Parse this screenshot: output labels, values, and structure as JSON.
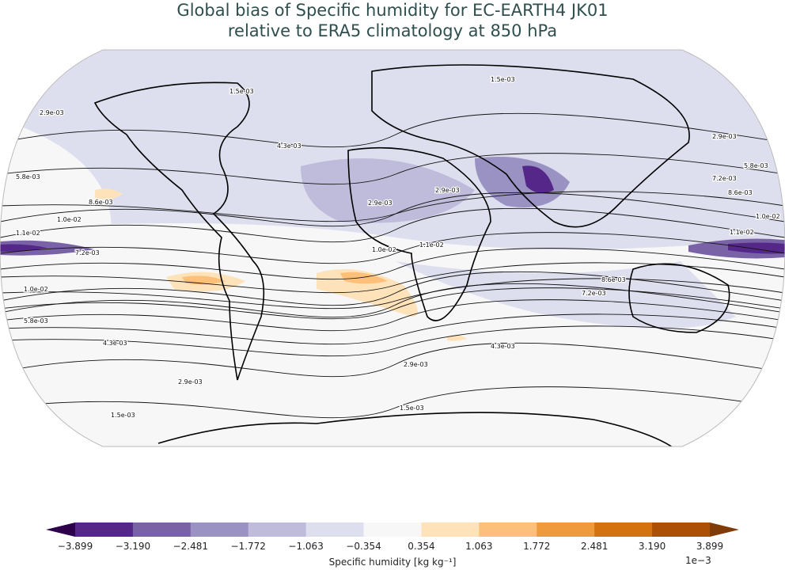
{
  "title_line1": "Global bias of Specific humidity for EC-EARTH4 JK01",
  "title_line2": "relative to ERA5 climatology at 850 hPa",
  "colorbar": {
    "label": "Specific humidity [kg kg⁻¹]",
    "exponent": "1e−3",
    "ticks": [
      "−3.899",
      "−3.190",
      "−2.481",
      "−1.772",
      "−1.063",
      "−0.354",
      "0.354",
      "1.063",
      "1.772",
      "2.481",
      "3.190",
      "3.899"
    ],
    "colors": [
      "#2d004b",
      "#542788",
      "#7a62a6",
      "#9a92c3",
      "#bfbbda",
      "#dedfee",
      "#f7f7f7",
      "#fde2ba",
      "#fdc07a",
      "#ee9a3d",
      "#d4720f",
      "#ac5005",
      "#7f3b08"
    ]
  },
  "contour_labels": [
    "1.5e-03",
    "1.5e-03",
    "2.9e-03",
    "2.9e-03",
    "2.9e-03",
    "2.9e-03",
    "4.3e-03",
    "4.3e-03",
    "4.3e-03",
    "5.8e-03",
    "5.8e-03",
    "5.8e-03",
    "7.2e-03",
    "7.2e-03",
    "7.2e-03",
    "8.6e-03",
    "8.6e-03",
    "8.6e-03",
    "1.0e-02",
    "1.0e-02",
    "1.0e-02",
    "1.0e-02",
    "1.1e-02",
    "1.1e-02",
    "1.1e-02",
    "2.9e-03",
    "2.9e-03",
    "1.5e-03",
    "1.5e-03"
  ]
}
